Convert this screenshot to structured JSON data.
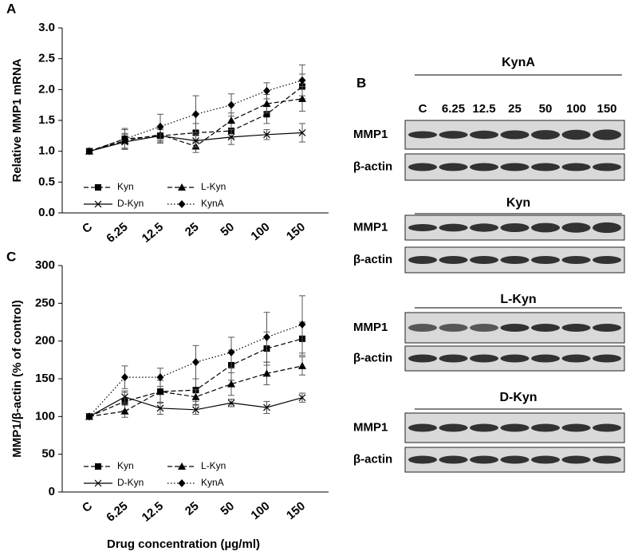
{
  "chart_data": [
    {
      "type": "line",
      "panel": "A",
      "y_label": "Relative MMP1 mRNA",
      "categories": [
        "C",
        "6.25",
        "12.5",
        "25",
        "50",
        "100",
        "150"
      ],
      "ylim": [
        0,
        3
      ],
      "yticks": [
        {
          "value": 0,
          "label": "0.0"
        },
        0.5,
        {
          "value": 1,
          "label": "1.0"
        },
        1.5,
        {
          "value": 2,
          "label": "2.0"
        },
        2.5,
        {
          "value": 3,
          "label": "3.0"
        }
      ],
      "grid": false,
      "legend": "lower left",
      "series": [
        {
          "name": "Kyn",
          "color": "#000000",
          "dash": "dashed",
          "marker": "square",
          "values": [
            1.0,
            1.2,
            1.25,
            1.3,
            1.33,
            1.6,
            2.05
          ],
          "errors": [
            0,
            0.15,
            0.12,
            0.15,
            0.12,
            0.15,
            0.2
          ]
        },
        {
          "name": "L-Kyn",
          "color": "#000000",
          "dash": "dashed",
          "marker": "triangle",
          "values": [
            1.0,
            1.17,
            1.27,
            1.08,
            1.5,
            1.77,
            1.85
          ],
          "errors": [
            0,
            0.12,
            0.1,
            0.1,
            0.12,
            0.15,
            0.2
          ]
        },
        {
          "name": "D-Kyn",
          "color": "#000000",
          "dash": "solid",
          "marker": "x",
          "values": [
            1.0,
            1.15,
            1.25,
            1.17,
            1.23,
            1.27,
            1.3
          ],
          "errors": [
            0,
            0.12,
            0.1,
            0.1,
            0.12,
            0.08,
            0.15
          ]
        },
        {
          "name": "KynA",
          "color": "#000000",
          "dash": "dotted",
          "marker": "diamond",
          "values": [
            1.0,
            1.2,
            1.4,
            1.6,
            1.75,
            1.98,
            2.15
          ],
          "errors": [
            0,
            0.17,
            0.2,
            0.3,
            0.18,
            0.13,
            0.25
          ]
        }
      ]
    },
    {
      "type": "line",
      "panel": "C",
      "y_label": "MMP1/β-actin (% of control)",
      "x_label": "Drug concentration (µg/ml)",
      "categories": [
        "C",
        "6.25",
        "12.5",
        "25",
        "50",
        "100",
        "150"
      ],
      "ylim": [
        0,
        300
      ],
      "yticks": [
        0,
        50,
        100,
        150,
        200,
        250,
        300
      ],
      "grid": false,
      "legend": "lower left",
      "series": [
        {
          "name": "Kyn",
          "color": "#000000",
          "dash": "dashed",
          "marker": "square",
          "values": [
            100,
            120,
            133,
            135,
            168,
            190,
            203
          ],
          "errors": [
            0,
            12,
            15,
            15,
            20,
            22,
            22
          ]
        },
        {
          "name": "L-Kyn",
          "color": "#000000",
          "dash": "dashed",
          "marker": "triangle",
          "values": [
            100,
            107,
            133,
            126,
            143,
            157,
            167
          ],
          "errors": [
            0,
            8,
            15,
            10,
            15,
            15,
            12
          ]
        },
        {
          "name": "D-Kyn",
          "color": "#000000",
          "dash": "solid",
          "marker": "x",
          "values": [
            100,
            126,
            111,
            109,
            118,
            112,
            125
          ],
          "errors": [
            0,
            8,
            8,
            6,
            5,
            8,
            6
          ]
        },
        {
          "name": "KynA",
          "color": "#000000",
          "dash": "dotted",
          "marker": "diamond",
          "values": [
            100,
            152,
            152,
            172,
            185,
            205,
            222
          ],
          "errors": [
            0,
            15,
            12,
            22,
            20,
            33,
            38
          ]
        }
      ]
    }
  ],
  "blot": {
    "panel": "B",
    "lanes": [
      "C",
      "6.25",
      "12.5",
      "25",
      "50",
      "100",
      "150"
    ],
    "groups": [
      {
        "name": "KynA",
        "rows": [
          "MMP1",
          "β-actin"
        ]
      },
      {
        "name": "Kyn",
        "rows": [
          "MMP1",
          "β-actin"
        ]
      },
      {
        "name": "L-Kyn",
        "rows": [
          "MMP1",
          "β-actin"
        ]
      },
      {
        "name": "D-Kyn",
        "rows": [
          "MMP1",
          "β-actin"
        ]
      }
    ]
  }
}
